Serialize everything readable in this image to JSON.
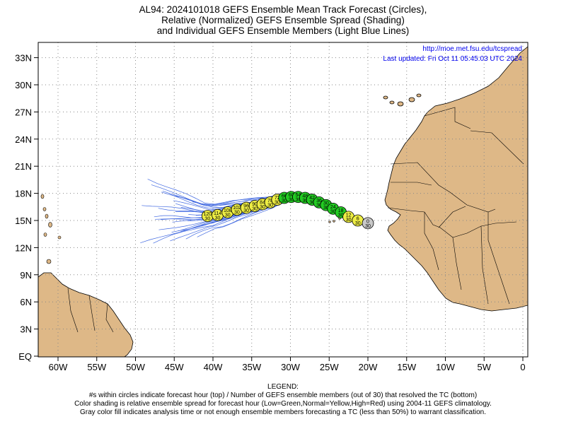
{
  "title": {
    "line1": "AL94: 2024101018 GEFS Ensemble Mean Track Forecast (Circles),",
    "line2": "Relative (Normalized) GEFS Ensemble Spread (Shading)",
    "line3": "and Individual GEFS Ensemble Members (Light Blue Lines)"
  },
  "credits": {
    "url": "http://moe.met.fsu.edu/tcspread",
    "updated": "Last updated: Fri Oct 11 05:45:03 UTC 2024"
  },
  "axes": {
    "lat_ticks": [
      "33N",
      "30N",
      "27N",
      "24N",
      "21N",
      "18N",
      "15N",
      "12N",
      "9N",
      "6N",
      "3N",
      "EQ"
    ],
    "lat_values": [
      33,
      30,
      27,
      24,
      21,
      18,
      15,
      12,
      9,
      6,
      3,
      0
    ],
    "lon_ticks": [
      "60W",
      "55W",
      "50W",
      "45W",
      "40W",
      "35W",
      "30W",
      "25W",
      "20W",
      "15W",
      "10W",
      "5W",
      "0"
    ],
    "lon_values": [
      -60,
      -55,
      -50,
      -45,
      -40,
      -35,
      -30,
      -25,
      -20,
      -15,
      -10,
      -5,
      0
    ]
  },
  "colors": {
    "land": "#deb887",
    "ocean": "#ffffff",
    "ensemble_lines": "#4169e1",
    "spread_low": "#22cc22",
    "spread_normal": "#eeee44",
    "analysis": "#c8c8c8"
  },
  "track": [
    {
      "hour": "0",
      "members": "30",
      "lon": -20.0,
      "lat": 14.7,
      "spread": "gray"
    },
    {
      "hour": "6",
      "members": "30",
      "lon": -21.3,
      "lat": 15.0,
      "spread": "yellow"
    },
    {
      "hour": "12",
      "members": "30",
      "lon": -22.5,
      "lat": 15.4,
      "spread": "yellow"
    },
    {
      "hour": "18",
      "members": "30",
      "lon": -23.5,
      "lat": 15.9,
      "spread": "green"
    },
    {
      "hour": "24",
      "members": "30",
      "lon": -24.5,
      "lat": 16.3,
      "spread": "green"
    },
    {
      "hour": "30",
      "members": "30",
      "lon": -25.4,
      "lat": 16.7,
      "spread": "green"
    },
    {
      "hour": "36",
      "members": "30",
      "lon": -26.3,
      "lat": 17.0,
      "spread": "green"
    },
    {
      "hour": "42",
      "members": "30",
      "lon": -27.2,
      "lat": 17.3,
      "spread": "green"
    },
    {
      "hour": "48",
      "members": "30",
      "lon": -28.1,
      "lat": 17.5,
      "spread": "green"
    },
    {
      "hour": "54",
      "members": "30",
      "lon": -29.0,
      "lat": 17.6,
      "spread": "green"
    },
    {
      "hour": "60",
      "members": "30",
      "lon": -29.9,
      "lat": 17.6,
      "spread": "green"
    },
    {
      "hour": "66",
      "members": "30",
      "lon": -30.8,
      "lat": 17.5,
      "spread": "green"
    },
    {
      "hour": "72",
      "members": "30",
      "lon": -31.7,
      "lat": 17.3,
      "spread": "yellow"
    },
    {
      "hour": "78",
      "members": "30",
      "lon": -32.6,
      "lat": 17.0,
      "spread": "yellow"
    },
    {
      "hour": "84",
      "members": "30",
      "lon": -33.6,
      "lat": 16.8,
      "spread": "yellow"
    },
    {
      "hour": "90",
      "members": "30",
      "lon": -34.6,
      "lat": 16.6,
      "spread": "yellow"
    },
    {
      "hour": "96",
      "members": "30",
      "lon": -35.7,
      "lat": 16.4,
      "spread": "yellow"
    },
    {
      "hour": "102",
      "members": "30",
      "lon": -36.9,
      "lat": 16.2,
      "spread": "yellow"
    },
    {
      "hour": "108",
      "members": "30",
      "lon": -38.1,
      "lat": 15.9,
      "spread": "yellow"
    },
    {
      "hour": "114",
      "members": "30",
      "lon": -39.4,
      "lat": 15.6,
      "spread": "yellow"
    },
    {
      "hour": "120",
      "members": "30",
      "lon": -40.7,
      "lat": 15.5,
      "spread": "yellow"
    }
  ],
  "legend": {
    "heading": "LEGEND:",
    "line1": "#s within circles indicate forecast hour (top) / Number of GEFS ensemble members (out of 30) that resolved the TC (bottom)",
    "line2": "Color shading is relative ensemble spread for forecast hour (Low=Green,Normal=Yellow,High=Red) using 2004-11 GEFS climatology.",
    "line3": "Gray color fill indicates analysis time or not enough ensemble members forecasting a TC (less than 50%) to warrant classification."
  }
}
